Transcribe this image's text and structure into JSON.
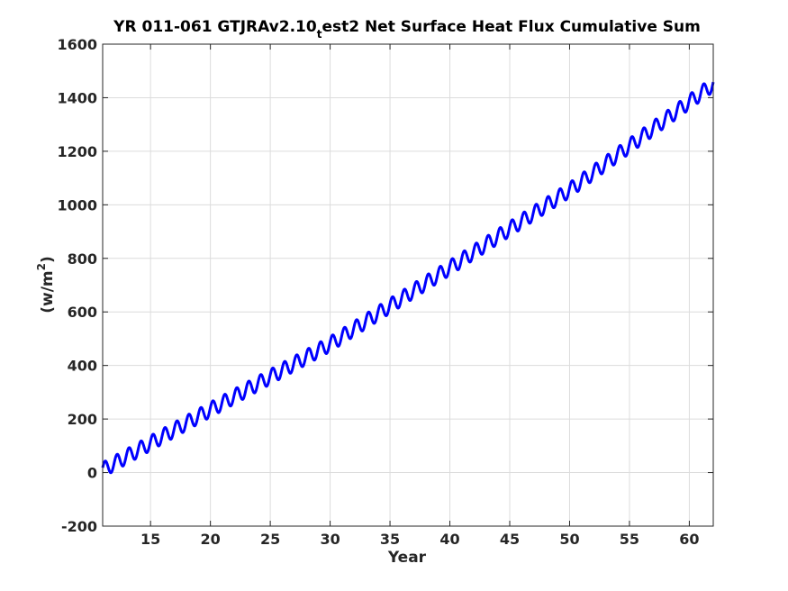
{
  "chart_data": {
    "type": "line",
    "title_main": "YR 011-061 GTJRAv2.10",
    "title_subscript": "t",
    "title_rest": "est2 Net Surface Heat Flux  Cumulative Sum",
    "xlabel": "Year",
    "ylabel_base": "(w/m",
    "ylabel_sup": "2",
    "ylabel_end": ")",
    "xlim": [
      11,
      62
    ],
    "ylim": [
      -200,
      1600
    ],
    "xticks": [
      15,
      20,
      25,
      30,
      35,
      40,
      45,
      50,
      55,
      60
    ],
    "yticks": [
      -200,
      0,
      200,
      400,
      600,
      800,
      1000,
      1200,
      1400,
      1600
    ],
    "grid": true,
    "series": [
      {
        "color": "#0000ff",
        "trend_x": [
          11,
          20,
          30,
          40,
          50,
          62
        ],
        "trend_y": [
          10,
          235,
          480,
          765,
          1055,
          1450
        ],
        "seasonal_amplitude": 28,
        "period_years": 1
      }
    ]
  }
}
